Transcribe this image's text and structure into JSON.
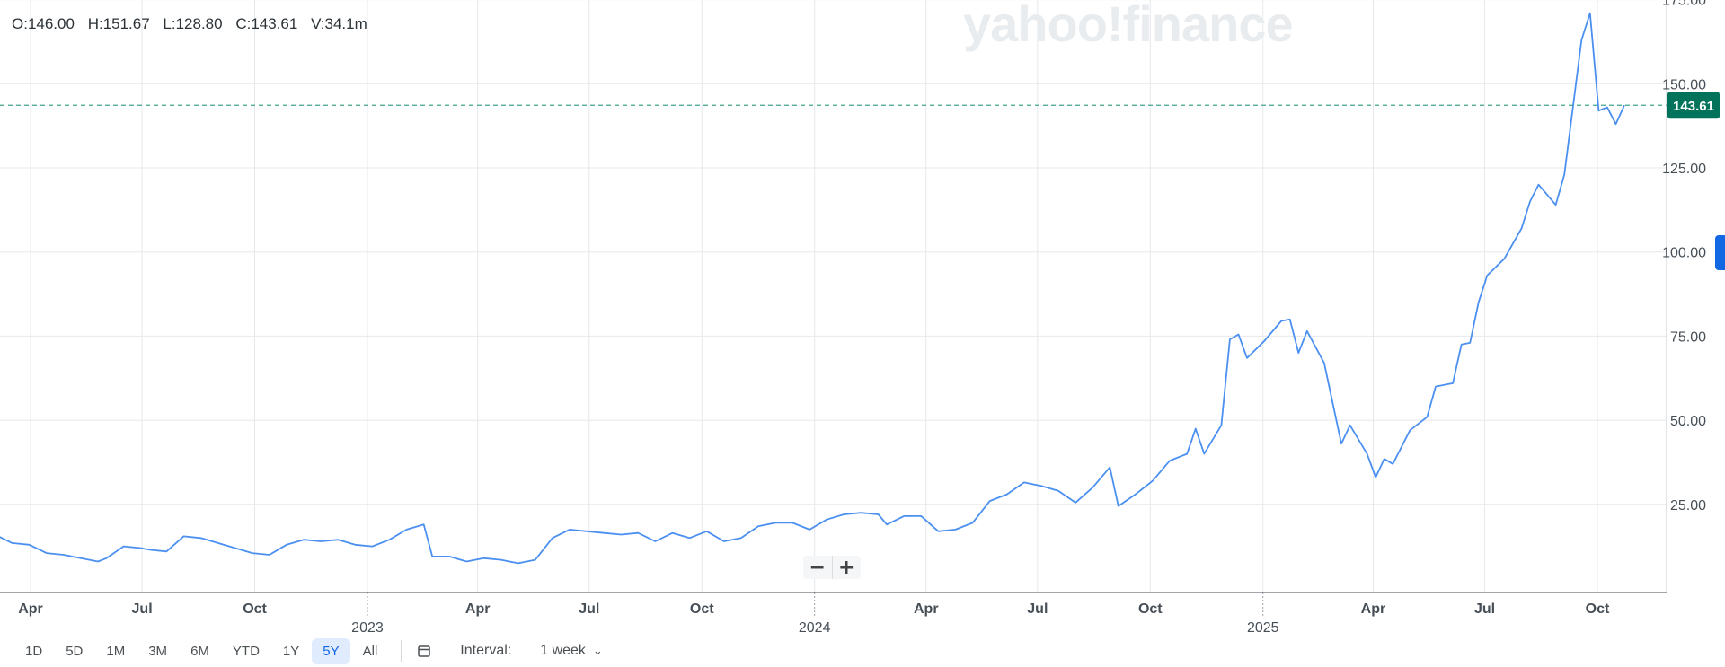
{
  "ohlc": {
    "open": "O:146.00",
    "high": "H:151.67",
    "low": "L:128.80",
    "close": "C:143.61",
    "volume": "V:34.1m"
  },
  "watermark": "yahoo!finance",
  "last_price_label": "143.61",
  "zoom": {
    "minus": "−",
    "plus": "+"
  },
  "range_buttons": [
    "1D",
    "5D",
    "1M",
    "3M",
    "6M",
    "YTD",
    "1Y",
    "5Y",
    "All"
  ],
  "active_range": "5Y",
  "interval": {
    "label": "Interval:",
    "value": "1 week"
  },
  "colors": {
    "line": "#4b90f0",
    "last_price_badge": "#00735a",
    "dashed": "#3fa48d",
    "grid": "#e6e8eb",
    "active_tab": "#1268e2"
  },
  "chart_data": {
    "type": "line",
    "ylim": [
      0,
      175
    ],
    "y_ticks": [
      25,
      50,
      75,
      100,
      125,
      150,
      175
    ],
    "y_tick_labels": [
      "25.00",
      "50.00",
      "75.00",
      "100.00",
      "125.00",
      "150.00",
      "175.00"
    ],
    "x_ticks": [
      {
        "date": "2022-04-01",
        "label": "Apr",
        "year_label": ""
      },
      {
        "date": "2022-07-01",
        "label": "Jul",
        "year_label": ""
      },
      {
        "date": "2022-10-01",
        "label": "Oct",
        "year_label": ""
      },
      {
        "date": "2023-01-01",
        "label": "",
        "year_label": "2023"
      },
      {
        "date": "2023-04-01",
        "label": "Apr",
        "year_label": ""
      },
      {
        "date": "2023-07-01",
        "label": "Jul",
        "year_label": ""
      },
      {
        "date": "2023-10-01",
        "label": "Oct",
        "year_label": ""
      },
      {
        "date": "2024-01-01",
        "label": "",
        "year_label": "2024"
      },
      {
        "date": "2024-04-01",
        "label": "Apr",
        "year_label": ""
      },
      {
        "date": "2024-07-01",
        "label": "Jul",
        "year_label": ""
      },
      {
        "date": "2024-10-01",
        "label": "Oct",
        "year_label": ""
      },
      {
        "date": "2025-01-01",
        "label": "",
        "year_label": "2025"
      },
      {
        "date": "2025-04-01",
        "label": "Apr",
        "year_label": ""
      },
      {
        "date": "2025-07-01",
        "label": "Jul",
        "year_label": ""
      },
      {
        "date": "2025-10-01",
        "label": "Oct",
        "year_label": ""
      }
    ],
    "last_value": 143.61,
    "series": [
      {
        "points": [
          [
            "2022-03-03",
            16
          ],
          [
            "2022-03-17",
            13.5
          ],
          [
            "2022-03-31",
            13
          ],
          [
            "2022-04-14",
            10.5
          ],
          [
            "2022-04-28",
            10
          ],
          [
            "2022-05-12",
            9
          ],
          [
            "2022-05-26",
            8
          ],
          [
            "2022-06-02",
            9
          ],
          [
            "2022-06-16",
            12.5
          ],
          [
            "2022-06-30",
            12
          ],
          [
            "2022-07-07",
            11.5
          ],
          [
            "2022-07-21",
            11
          ],
          [
            "2022-08-04",
            15.5
          ],
          [
            "2022-08-18",
            15
          ],
          [
            "2022-09-01",
            13.5
          ],
          [
            "2022-09-15",
            12
          ],
          [
            "2022-09-29",
            10.5
          ],
          [
            "2022-10-13",
            10
          ],
          [
            "2022-10-27",
            13
          ],
          [
            "2022-11-10",
            14.5
          ],
          [
            "2022-11-24",
            14
          ],
          [
            "2022-12-08",
            14.5
          ],
          [
            "2022-12-22",
            13
          ],
          [
            "2023-01-05",
            12.5
          ],
          [
            "2023-01-19",
            14.5
          ],
          [
            "2023-02-02",
            17.5
          ],
          [
            "2023-02-16",
            19
          ],
          [
            "2023-02-23",
            9.5
          ],
          [
            "2023-03-09",
            9.5
          ],
          [
            "2023-03-23",
            8
          ],
          [
            "2023-04-06",
            9
          ],
          [
            "2023-04-20",
            8.5
          ],
          [
            "2023-05-04",
            7.5
          ],
          [
            "2023-05-18",
            8.5
          ],
          [
            "2023-06-01",
            15
          ],
          [
            "2023-06-15",
            17.5
          ],
          [
            "2023-06-29",
            17
          ],
          [
            "2023-07-13",
            16.5
          ],
          [
            "2023-07-27",
            16
          ],
          [
            "2023-08-10",
            16.5
          ],
          [
            "2023-08-24",
            14
          ],
          [
            "2023-09-07",
            16.5
          ],
          [
            "2023-09-21",
            15
          ],
          [
            "2023-10-05",
            17
          ],
          [
            "2023-10-19",
            14
          ],
          [
            "2023-11-02",
            15
          ],
          [
            "2023-11-16",
            18.5
          ],
          [
            "2023-11-30",
            19.5
          ],
          [
            "2023-12-14",
            19.5
          ],
          [
            "2023-12-28",
            17.5
          ],
          [
            "2024-01-11",
            20.5
          ],
          [
            "2024-01-25",
            22
          ],
          [
            "2024-02-08",
            22.5
          ],
          [
            "2024-02-22",
            22
          ],
          [
            "2024-02-29",
            19
          ],
          [
            "2024-03-14",
            21.5
          ],
          [
            "2024-03-28",
            21.5
          ],
          [
            "2024-04-11",
            17
          ],
          [
            "2024-04-25",
            17.5
          ],
          [
            "2024-05-09",
            19.5
          ],
          [
            "2024-05-23",
            26
          ],
          [
            "2024-06-06",
            28
          ],
          [
            "2024-06-20",
            31.5
          ],
          [
            "2024-07-04",
            30.5
          ],
          [
            "2024-07-18",
            29
          ],
          [
            "2024-08-01",
            25.5
          ],
          [
            "2024-08-15",
            30
          ],
          [
            "2024-08-29",
            36
          ],
          [
            "2024-09-05",
            24.5
          ],
          [
            "2024-09-19",
            28
          ],
          [
            "2024-10-03",
            32
          ],
          [
            "2024-10-17",
            38
          ],
          [
            "2024-10-31",
            40
          ],
          [
            "2024-11-07",
            47.5
          ],
          [
            "2024-11-14",
            40
          ],
          [
            "2024-11-28",
            48.5
          ],
          [
            "2024-12-05",
            74
          ],
          [
            "2024-12-12",
            75.5
          ],
          [
            "2024-12-19",
            68.5
          ],
          [
            "2025-01-02",
            73.5
          ],
          [
            "2025-01-16",
            79.5
          ],
          [
            "2025-01-23",
            80
          ],
          [
            "2025-01-30",
            70
          ],
          [
            "2025-02-06",
            76.5
          ],
          [
            "2025-02-20",
            67
          ],
          [
            "2025-03-06",
            43
          ],
          [
            "2025-03-13",
            48.5
          ],
          [
            "2025-03-27",
            40
          ],
          [
            "2025-04-03",
            33
          ],
          [
            "2025-04-10",
            38.5
          ],
          [
            "2025-04-17",
            37
          ],
          [
            "2025-05-01",
            47
          ],
          [
            "2025-05-15",
            51
          ],
          [
            "2025-05-22",
            60
          ],
          [
            "2025-06-05",
            61
          ],
          [
            "2025-06-12",
            72.5
          ],
          [
            "2025-06-19",
            73
          ],
          [
            "2025-06-26",
            85
          ],
          [
            "2025-07-03",
            93
          ],
          [
            "2025-07-17",
            98
          ],
          [
            "2025-07-31",
            107
          ],
          [
            "2025-08-07",
            115
          ],
          [
            "2025-08-14",
            120
          ],
          [
            "2025-08-28",
            114
          ],
          [
            "2025-09-04",
            123
          ],
          [
            "2025-09-18",
            163
          ],
          [
            "2025-09-25",
            171
          ],
          [
            "2025-10-02",
            142
          ],
          [
            "2025-10-09",
            143
          ],
          [
            "2025-10-16",
            138
          ],
          [
            "2025-10-23",
            143.61
          ]
        ]
      }
    ]
  }
}
